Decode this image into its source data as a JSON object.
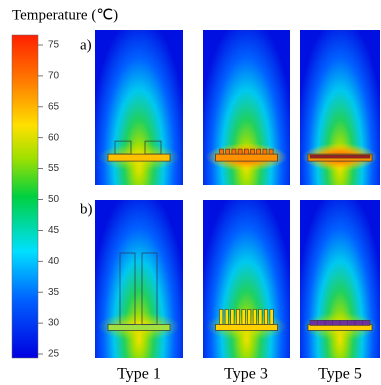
{
  "title": "Temperature (℃)",
  "colorbar": {
    "ticks": [
      25,
      30,
      35,
      40,
      45,
      50,
      55,
      60,
      65,
      70,
      75
    ]
  },
  "rows": [
    "a)",
    "b)"
  ],
  "columns": [
    "Type 1",
    "Type 3",
    "Type 5"
  ]
}
